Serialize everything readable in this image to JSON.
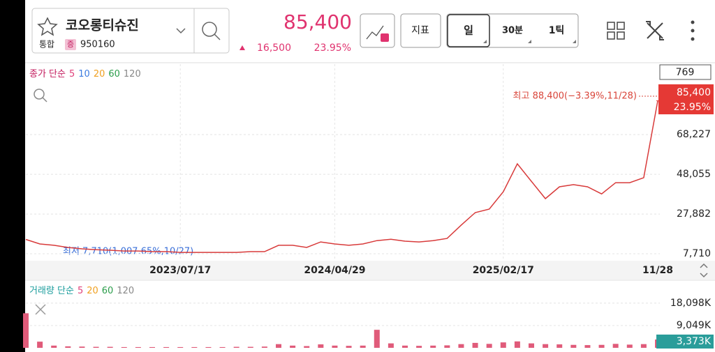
{
  "header": {
    "name": "코오롱티슈진",
    "market": "통합",
    "badge": "증",
    "code": "950160",
    "price": "85,400",
    "change": "16,500",
    "change_rate": "23.95%"
  },
  "toolbar": {
    "indicator": "지표",
    "periods": [
      "일",
      "30분",
      "1틱"
    ]
  },
  "chart_data": [
    {
      "type": "line",
      "legend_title": "종가 단순",
      "legend": [
        {
          "label": "5",
          "color": "#e0407a"
        },
        {
          "label": "10",
          "color": "#3b7be0"
        },
        {
          "label": "20",
          "color": "#f0a020"
        },
        {
          "label": "60",
          "color": "#2a9d4a"
        },
        {
          "label": "120",
          "color": "#888888"
        }
      ],
      "categories": [
        null,
        null,
        null,
        null,
        null,
        null,
        null,
        null,
        null,
        null,
        null,
        "2023/07/17",
        null,
        null,
        null,
        null,
        null,
        null,
        null,
        null,
        null,
        null,
        "2024/04/29",
        null,
        null,
        null,
        null,
        null,
        null,
        null,
        null,
        null,
        null,
        null,
        "2025/02/17",
        null,
        null,
        null,
        null,
        null,
        null,
        null,
        null,
        null,
        null,
        "11/28"
      ],
      "values": [
        15000,
        12700,
        12000,
        10900,
        10200,
        9800,
        9500,
        9100,
        9100,
        8800,
        8800,
        8400,
        8400,
        8400,
        8400,
        8400,
        8800,
        8800,
        12000,
        12000,
        10900,
        13700,
        12700,
        12000,
        12700,
        14400,
        15100,
        14100,
        13700,
        14400,
        15500,
        22200,
        28600,
        30400,
        39200,
        53400,
        44500,
        35700,
        41700,
        42800,
        41700,
        38100,
        43800,
        43800,
        46300,
        85400
      ],
      "color": "#d83a3a",
      "ylim": [
        4900,
        104000
      ],
      "yticks": [
        {
          "value": 7710,
          "label": "7,710"
        },
        {
          "value": 27882,
          "label": "27,882"
        },
        {
          "value": 48055,
          "label": "48,055"
        },
        {
          "value": 68227,
          "label": "68,227"
        }
      ],
      "grid": true,
      "count_label": "769",
      "current": {
        "value": 85400,
        "label": "85,400",
        "rate": "23.95%"
      },
      "high_annotation": "최고 88,400(−3.39%,11/28)",
      "low_annotation": "최저 7,710(1,007.65%,10/27)"
    },
    {
      "type": "bar",
      "legend_title": "거래량 단순",
      "legend": [
        {
          "label": "5",
          "color": "#e0407a"
        },
        {
          "label": "20",
          "color": "#f0a020"
        },
        {
          "label": "60",
          "color": "#2a9d4a"
        },
        {
          "label": "120",
          "color": "#888888"
        }
      ],
      "values": [
        14000,
        2500,
        900,
        600,
        500,
        400,
        400,
        300,
        300,
        300,
        300,
        300,
        300,
        300,
        300,
        400,
        400,
        500,
        1500,
        900,
        700,
        1400,
        900,
        800,
        900,
        7300,
        1800,
        900,
        800,
        900,
        1000,
        1500,
        2000,
        1600,
        2200,
        2600,
        1800,
        1500,
        1400,
        1200,
        1100,
        1200,
        1600,
        1300,
        1500,
        3373
      ],
      "color": "#e05b7a",
      "ylim": [
        0,
        22300
      ],
      "yticks": [
        {
          "value": 9049,
          "label": "9,049K"
        },
        {
          "value": 18098,
          "label": "18,098K"
        }
      ],
      "current": {
        "value": 3373,
        "label": "3,373K"
      }
    }
  ]
}
